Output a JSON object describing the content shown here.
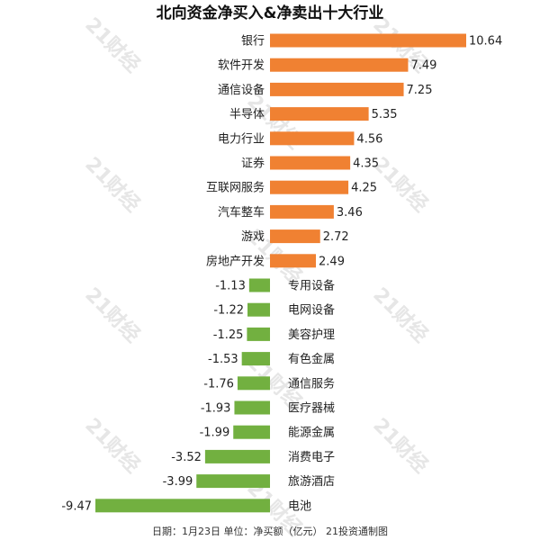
{
  "chart_data": {
    "type": "bar",
    "orientation": "horizontal",
    "title": "北向资金净买入&净卖出十大行业",
    "footer": "日期：1月23日 单位：净买额（亿元） 21投资通制图",
    "watermark": "21财经",
    "categories": [
      "银行",
      "软件开发",
      "通信设备",
      "半导体",
      "电力行业",
      "证券",
      "互联网服务",
      "汽车整车",
      "游戏",
      "房地产开发",
      "专用设备",
      "电网设备",
      "美容护理",
      "有色金属",
      "通信服务",
      "医疗器械",
      "能源金属",
      "消费电子",
      "旅游酒店",
      "电池"
    ],
    "values": [
      10.64,
      7.49,
      7.25,
      5.35,
      4.56,
      4.35,
      4.25,
      3.46,
      2.72,
      2.49,
      -1.13,
      -1.22,
      -1.25,
      -1.53,
      -1.76,
      -1.93,
      -1.99,
      -3.52,
      -3.99,
      -9.47
    ],
    "value_labels": [
      "10.64",
      "7.49",
      "7.25",
      "5.35",
      "4.56",
      "4.35",
      "4.25",
      "3.46",
      "2.72",
      "2.49",
      "-1.13",
      "-1.22",
      "-1.25",
      "-1.53",
      "-1.76",
      "-1.93",
      "-1.99",
      "-3.52",
      "-3.99",
      "-9.47"
    ],
    "colors": {
      "positive": "#f08132",
      "negative": "#72b040",
      "text": "#222222",
      "watermark": "#e6e6e6"
    },
    "xlim": [
      -9.47,
      10.64
    ],
    "grid": false,
    "legend": "none"
  }
}
